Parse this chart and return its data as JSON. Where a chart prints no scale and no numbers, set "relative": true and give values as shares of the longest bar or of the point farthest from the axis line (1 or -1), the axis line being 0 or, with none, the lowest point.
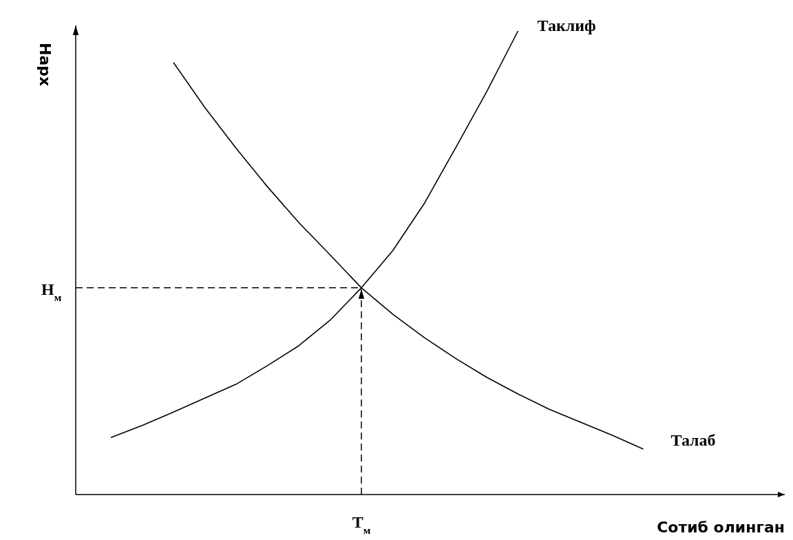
{
  "chart_data": {
    "type": "line",
    "relative": true,
    "xlabel": "Сотиб олинган",
    "ylabel": "Нарх",
    "categories": [
      null,
      null,
      null,
      null,
      null,
      null,
      null,
      null,
      null,
      null,
      null,
      null,
      null,
      null,
      null,
      null,
      null,
      null
    ],
    "series": [
      {
        "name": "Таклиф",
        "color": "#000000",
        "values": [
          0.123,
          0.149,
          0.178,
          0.208,
          0.238,
          0.278,
          0.321,
          0.376,
          0.446,
          0.526,
          0.627,
          0.747,
          0.869,
          1,
          null,
          null,
          null,
          null
        ]
      },
      {
        "name": "Талаб",
        "color": "#000000",
        "values": [
          null,
          null,
          0.932,
          0.835,
          0.747,
          0.664,
          0.587,
          0.517,
          0.446,
          0.389,
          0.339,
          0.294,
          0.253,
          0.217,
          0.184,
          0.156,
          0.128,
          0.098
        ]
      }
    ],
    "ref_lines": [
      {
        "axis": "y",
        "value": 0.446,
        "label": "Н$_{м}$",
        "line_style": "dashed",
        "color": "#000000"
      }
    ],
    "annotations": [
      "Т$_{м}$"
    ]
  }
}
